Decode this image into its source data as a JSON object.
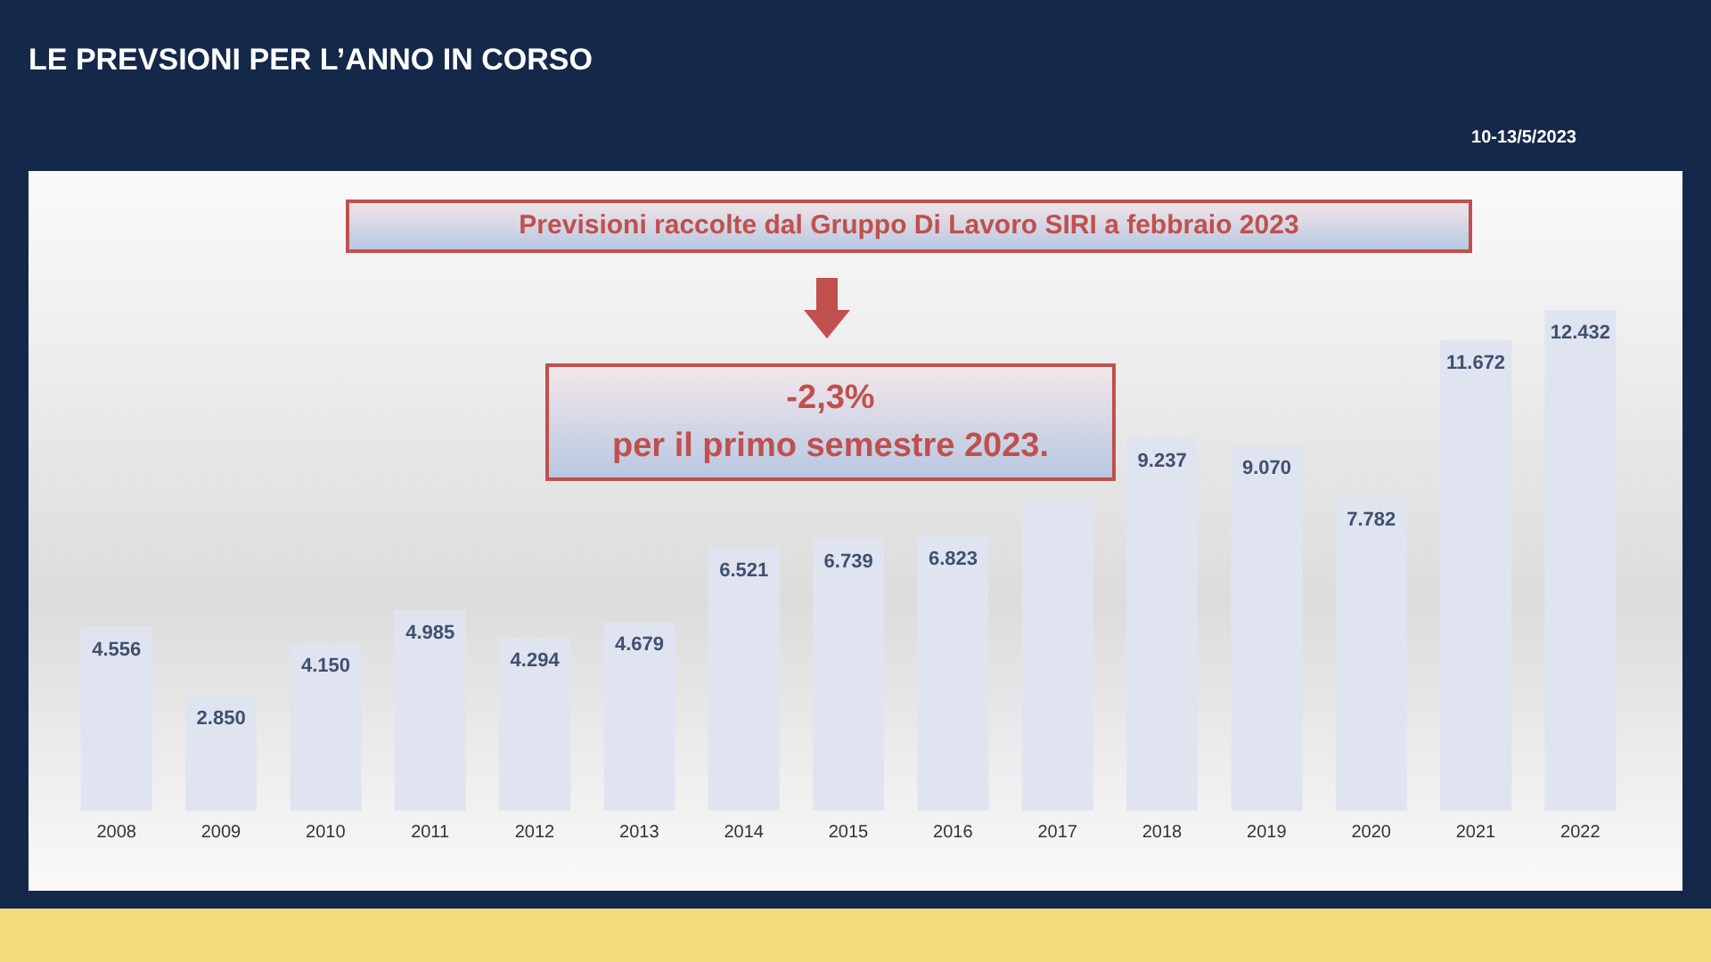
{
  "chart_data": {
    "type": "bar",
    "title": "LE PREVSIONI PER L’ANNO IN CORSO",
    "categories": [
      "2008",
      "2009",
      "2010",
      "2011",
      "2012",
      "2013",
      "2014",
      "2015",
      "2016",
      "2017",
      "2018",
      "2019",
      "2020",
      "2021",
      "2022"
    ],
    "values": [
      4.556,
      2.85,
      4.15,
      4.985,
      4.294,
      4.679,
      6.521,
      6.739,
      6.823,
      7.7,
      9.237,
      9.07,
      7.782,
      11.672,
      12.432
    ],
    "annotations": [
      "Previsioni raccolte dal Gruppo Di Lavoro SIRI a febbraio 2023",
      "-2,3%",
      "per il primo semestre 2023.",
      "10-13/5/2023"
    ],
    "value_labels": [
      "4.556",
      "2.850",
      "4.150",
      "4.985",
      "4.294",
      "4.679",
      "6.521",
      "6.739",
      "6.823",
      null,
      "9.237",
      "9.070",
      "7.782",
      "11.672",
      "12.432"
    ],
    "color": "#dfe4f0"
  }
}
